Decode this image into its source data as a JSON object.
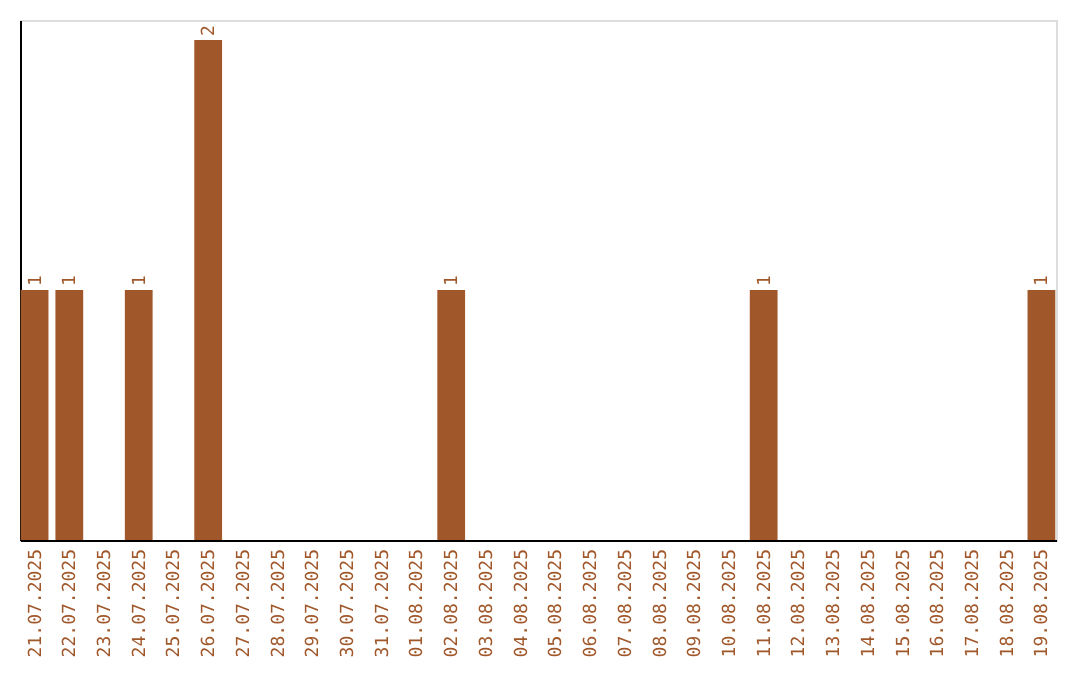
{
  "chart_data": {
    "type": "bar",
    "categories": [
      "21.07.2025",
      "22.07.2025",
      "23.07.2025",
      "24.07.2025",
      "25.07.2025",
      "26.07.2025",
      "27.07.2025",
      "28.07.2025",
      "29.07.2025",
      "30.07.2025",
      "31.07.2025",
      "01.08.2025",
      "02.08.2025",
      "03.08.2025",
      "04.08.2025",
      "05.08.2025",
      "06.08.2025",
      "07.08.2025",
      "08.08.2025",
      "09.08.2025",
      "10.08.2025",
      "11.08.2025",
      "12.08.2025",
      "13.08.2025",
      "14.08.2025",
      "15.08.2025",
      "16.08.2025",
      "17.08.2025",
      "18.08.2025",
      "19.08.2025"
    ],
    "values": [
      1,
      1,
      0,
      1,
      0,
      2,
      0,
      0,
      0,
      0,
      0,
      0,
      1,
      0,
      0,
      0,
      0,
      0,
      0,
      0,
      0,
      1,
      0,
      0,
      0,
      0,
      0,
      0,
      0,
      1
    ],
    "value_labels": [
      "1",
      "1",
      null,
      "1",
      null,
      "2",
      null,
      null,
      null,
      null,
      null,
      null,
      "1",
      null,
      null,
      null,
      null,
      null,
      null,
      null,
      null,
      "1",
      null,
      null,
      null,
      null,
      null,
      null,
      null,
      "1"
    ],
    "color": "#a0572a",
    "ylim": [
      0,
      2.08
    ],
    "tick_labels": "x"
  }
}
